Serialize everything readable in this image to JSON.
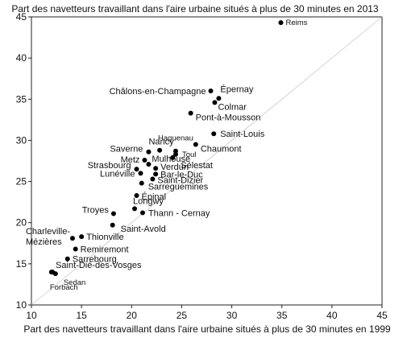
{
  "chart_data": {
    "type": "scatter",
    "title": "Part des navetteurs travaillant dans l'aire urbaine situés à plus de 30 minutes en 2013",
    "xlabel": "Part des navetteurs travaillant dans l'aire urbaine situés à plus de 30 minutes en 1999",
    "ylabel": "",
    "xlim": [
      10,
      45
    ],
    "ylim": [
      10,
      45
    ],
    "xticks": [
      10,
      15,
      20,
      25,
      30,
      35,
      40,
      45
    ],
    "yticks": [
      10,
      15,
      20,
      25,
      30,
      35,
      40,
      45
    ],
    "grid": false,
    "reference_line": "y = x",
    "marker_color": "#000000",
    "reference_line_color": "#c8c8c8",
    "points": [
      {
        "label": "Reims",
        "x": 34.9,
        "y": 44.3
      },
      {
        "label": "Châlons-en-Champagne",
        "x": 27.9,
        "y": 36.0
      },
      {
        "label": "Épernay",
        "x": 28.7,
        "y": 35.1
      },
      {
        "label": "Colmar",
        "x": 28.3,
        "y": 34.6
      },
      {
        "label": "Pont-à-Mousson",
        "x": 25.9,
        "y": 33.3
      },
      {
        "label": "Saint-Louis",
        "x": 28.2,
        "y": 30.8
      },
      {
        "label": "Haguenau",
        "x": 24.4,
        "y": 28.7
      },
      {
        "label": "Chaumont",
        "x": 26.4,
        "y": 29.5
      },
      {
        "label": "Nancy",
        "x": 22.8,
        "y": 28.8
      },
      {
        "label": "Saverne",
        "x": 21.7,
        "y": 28.6
      },
      {
        "label": "Toul",
        "x": 24.4,
        "y": 28.3
      },
      {
        "label": "Metz",
        "x": 21.3,
        "y": 27.6
      },
      {
        "label": "Mulhouse",
        "x": 21.7,
        "y": 27.1
      },
      {
        "label": "Sélestat",
        "x": 24.1,
        "y": 27.9
      },
      {
        "label": "Strasbourg",
        "x": 20.5,
        "y": 26.5
      },
      {
        "label": "Verdun",
        "x": 22.4,
        "y": 26.6
      },
      {
        "label": "Lunéville",
        "x": 20.9,
        "y": 26.0
      },
      {
        "label": "Bar-le-Duc",
        "x": 22.4,
        "y": 25.9
      },
      {
        "label": "Saint-Dizier",
        "x": 22.1,
        "y": 25.3
      },
      {
        "label": "Sarreguemines",
        "x": 21.0,
        "y": 24.8
      },
      {
        "label": "Épinal",
        "x": 20.5,
        "y": 23.3
      },
      {
        "label": "Longwy",
        "x": 20.3,
        "y": 21.7
      },
      {
        "label": "Troyes",
        "x": 18.2,
        "y": 21.1
      },
      {
        "label": "Thann - Cernay",
        "x": 21.1,
        "y": 21.2
      },
      {
        "label": "Saint-Avold",
        "x": 18.1,
        "y": 19.7
      },
      {
        "label": "Charleville-Mézières",
        "x": 14.1,
        "y": 18.1
      },
      {
        "label": "Thionville",
        "x": 15.0,
        "y": 18.3
      },
      {
        "label": "Remiremont",
        "x": 14.4,
        "y": 16.8
      },
      {
        "label": "Sarrebourg",
        "x": 13.6,
        "y": 15.6
      },
      {
        "label": "Saint-Dié-des-Vosges",
        "x": 12.1,
        "y": 14.0
      },
      {
        "label": "Sedan",
        "x": 12.4,
        "y": 13.8
      },
      {
        "label": "Forbach",
        "x": 12.0,
        "y": 14.0
      }
    ]
  }
}
